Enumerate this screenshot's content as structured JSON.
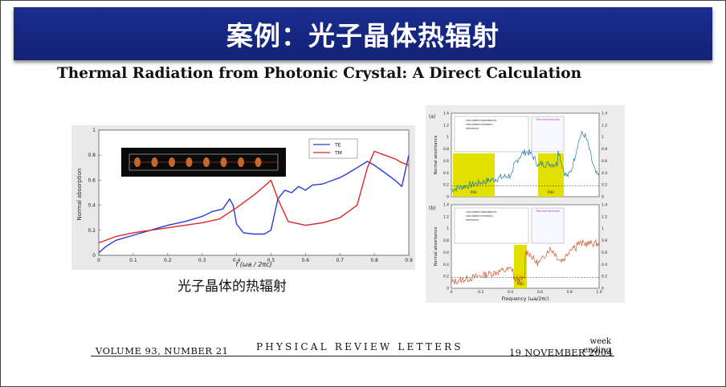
{
  "slide": {
    "title": "案例：光子晶体热辐射",
    "paper_title": "Thermal Radiation from Photonic Crystal: A Direct Calculation",
    "caption": "光子晶体的热辐射"
  },
  "footer": {
    "volume": "VOLUME 93, NUMBER 21",
    "journal": "PHYSICAL REVIEW LETTERS",
    "week": "week ending",
    "date": "19 NOVEMBER 2004"
  },
  "chart_data": [
    {
      "type": "line",
      "xlabel": "f (ωa / 2πc)",
      "ylabel": "Normal absorption",
      "xlim": [
        0,
        0.9
      ],
      "ylim": [
        0,
        1
      ],
      "x_ticks": [
        "0",
        "0.1",
        "0.2",
        "0.3",
        "0.4",
        "0.5",
        "0.6",
        "0.7",
        "0.8",
        "0.9"
      ],
      "y_ticks": [
        "0",
        "0.2",
        "0.4",
        "0.6",
        "0.8",
        "1"
      ],
      "legend": "top-center",
      "series": [
        {
          "name": "TE",
          "color": "#2b3ad6",
          "points": [
            [
              0.0,
              0.02
            ],
            [
              0.02,
              0.07
            ],
            [
              0.05,
              0.12
            ],
            [
              0.1,
              0.16
            ],
            [
              0.15,
              0.2
            ],
            [
              0.2,
              0.24
            ],
            [
              0.25,
              0.27
            ],
            [
              0.3,
              0.31
            ],
            [
              0.33,
              0.35
            ],
            [
              0.36,
              0.37
            ],
            [
              0.38,
              0.45
            ],
            [
              0.39,
              0.4
            ],
            [
              0.4,
              0.25
            ],
            [
              0.42,
              0.18
            ],
            [
              0.45,
              0.17
            ],
            [
              0.48,
              0.17
            ],
            [
              0.5,
              0.2
            ],
            [
              0.52,
              0.45
            ],
            [
              0.54,
              0.52
            ],
            [
              0.56,
              0.5
            ],
            [
              0.58,
              0.55
            ],
            [
              0.6,
              0.52
            ],
            [
              0.62,
              0.56
            ],
            [
              0.65,
              0.57
            ],
            [
              0.68,
              0.6
            ],
            [
              0.7,
              0.62
            ],
            [
              0.72,
              0.65
            ],
            [
              0.75,
              0.7
            ],
            [
              0.78,
              0.75
            ],
            [
              0.8,
              0.72
            ],
            [
              0.83,
              0.66
            ],
            [
              0.86,
              0.6
            ],
            [
              0.88,
              0.55
            ],
            [
              0.9,
              0.8
            ]
          ]
        },
        {
          "name": "TM",
          "color": "#e02525",
          "points": [
            [
              0.0,
              0.1
            ],
            [
              0.05,
              0.15
            ],
            [
              0.1,
              0.18
            ],
            [
              0.15,
              0.2
            ],
            [
              0.2,
              0.22
            ],
            [
              0.25,
              0.24
            ],
            [
              0.3,
              0.26
            ],
            [
              0.35,
              0.29
            ],
            [
              0.4,
              0.38
            ],
            [
              0.45,
              0.48
            ],
            [
              0.48,
              0.55
            ],
            [
              0.5,
              0.6
            ],
            [
              0.52,
              0.45
            ],
            [
              0.55,
              0.27
            ],
            [
              0.6,
              0.24
            ],
            [
              0.65,
              0.26
            ],
            [
              0.7,
              0.3
            ],
            [
              0.75,
              0.4
            ],
            [
              0.78,
              0.7
            ],
            [
              0.8,
              0.83
            ],
            [
              0.83,
              0.8
            ],
            [
              0.86,
              0.77
            ],
            [
              0.88,
              0.74
            ],
            [
              0.9,
              0.72
            ]
          ]
        }
      ]
    },
    {
      "type": "line",
      "panels": [
        {
          "label": "(a)",
          "ylabel": "Normal absorbance",
          "ylim": [
            0,
            1.4
          ],
          "y_ticks": [
            "0",
            "0.2",
            "0.4",
            "0.6",
            "0.8",
            "1",
            "1.2",
            "1.4"
          ],
          "legend_entries": [
            "calculated absorbance",
            "calculated emission",
            "reference"
          ],
          "inset_legend": "Thermal emission",
          "band_labels": [
            "PBG",
            "PBG"
          ],
          "series_color": "#1f7ea3"
        },
        {
          "label": "(b)",
          "ylabel": "Normal absorbance",
          "ylim": [
            0,
            1.4
          ],
          "y_ticks": [
            "0",
            "0.2",
            "0.4",
            "0.6",
            "0.8",
            "1",
            "1.2",
            "1.4"
          ],
          "legend_entries": [
            "calculated absorbance",
            "calculated emission",
            "reference"
          ],
          "inset_legend": "Thermal emission",
          "band_labels": [
            "PBG"
          ],
          "series_color": "#d4552a"
        }
      ],
      "xlabel": "Frequency (ωa/2πc)",
      "xlim": [
        0,
        1.0
      ],
      "x_ticks": [
        "0",
        "0.2",
        "0.4",
        "0.6",
        "0.8",
        "1.0"
      ]
    }
  ]
}
